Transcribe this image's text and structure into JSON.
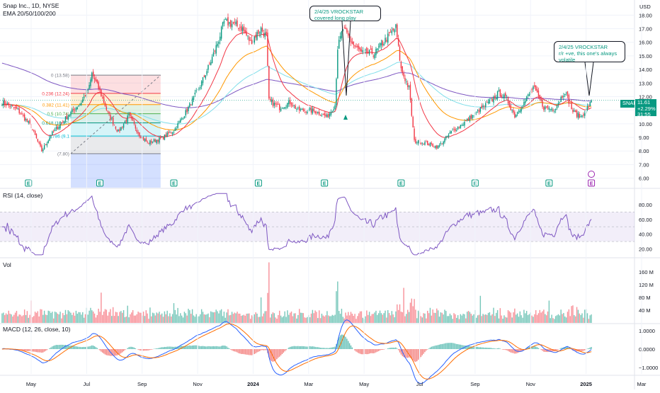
{
  "header": {
    "title": "Snap Inc., 1D, NYSE",
    "indicator": "EMA 20/50/100/200",
    "currency": "USD"
  },
  "panes": {
    "rsi_title": "RSI (14, close)",
    "vol_title": "Vol",
    "macd_title": "MACD (12, 26, close, 10)"
  },
  "annotations": [
    {
      "lines": [
        "2/4/25 VROCKSTAR",
        "covered long play"
      ]
    },
    {
      "lines": [
        "2/4/25 VROCKSTAR",
        "r/r +ve, this one's always",
        "volatile"
      ]
    }
  ],
  "price_tag": {
    "symbol": "SNAP",
    "price": "11.61",
    "change": "+2.29%",
    "time": "31:55"
  },
  "chart_data": {
    "type": "candlestick",
    "x_ticks": [
      "May",
      "Jul",
      "Sep",
      "Nov",
      "2024",
      "Mar",
      "May",
      "Jul",
      "Sep",
      "Nov",
      "2025",
      "Mar"
    ],
    "price_axis": {
      "ticks": [
        6.0,
        7.0,
        8.0,
        9.0,
        10.0,
        11.0,
        12.0,
        13.0,
        14.0,
        15.0,
        16.0,
        17.0,
        18.0
      ],
      "range": [
        5.3,
        18.8
      ]
    },
    "ohlc_anchors": [
      [
        0,
        11.6
      ],
      [
        12,
        11.0
      ],
      [
        22,
        9.8
      ],
      [
        30,
        8.0
      ],
      [
        38,
        9.3
      ],
      [
        48,
        10.4
      ],
      [
        60,
        11.6
      ],
      [
        66,
        12.7
      ],
      [
        68,
        13.7
      ],
      [
        74,
        12.4
      ],
      [
        80,
        10.8
      ],
      [
        88,
        9.4
      ],
      [
        96,
        10.6
      ],
      [
        104,
        9.2
      ],
      [
        110,
        8.6
      ],
      [
        120,
        8.9
      ],
      [
        130,
        9.5
      ],
      [
        140,
        11.0
      ],
      [
        150,
        12.8
      ],
      [
        158,
        14.6
      ],
      [
        164,
        16.2
      ],
      [
        168,
        17.5
      ],
      [
        176,
        17.3
      ],
      [
        182,
        17.0
      ],
      [
        188,
        16.0
      ],
      [
        196,
        17.0
      ],
      [
        200,
        16.4
      ],
      [
        202,
        11.7
      ],
      [
        210,
        11.2
      ],
      [
        218,
        11.6
      ],
      [
        224,
        11.0
      ],
      [
        232,
        11.0
      ],
      [
        238,
        10.9
      ],
      [
        246,
        10.5
      ],
      [
        252,
        11.4
      ],
      [
        254,
        15.6
      ],
      [
        258,
        17.0
      ],
      [
        266,
        15.8
      ],
      [
        272,
        15.2
      ],
      [
        282,
        15.2
      ],
      [
        292,
        16.4
      ],
      [
        298,
        17.1
      ],
      [
        302,
        14.0
      ],
      [
        308,
        12.6
      ],
      [
        312,
        8.7
      ],
      [
        320,
        8.6
      ],
      [
        330,
        8.3
      ],
      [
        340,
        9.4
      ],
      [
        350,
        10.1
      ],
      [
        360,
        10.9
      ],
      [
        370,
        11.7
      ],
      [
        376,
        12.3
      ],
      [
        382,
        11.8
      ],
      [
        388,
        10.6
      ],
      [
        396,
        11.7
      ],
      [
        402,
        12.7
      ],
      [
        410,
        11.2
      ],
      [
        418,
        11.1
      ],
      [
        426,
        12.4
      ],
      [
        432,
        10.9
      ],
      [
        438,
        10.5
      ],
      [
        446,
        11.6
      ]
    ],
    "fibonacci": {
      "high": 13.58,
      "low": 7.8,
      "levels": [
        {
          "ratio": "0",
          "price": "13.58",
          "label": "0 (13.58)",
          "color": "#787b86"
        },
        {
          "ratio": "0.236",
          "price": "12.24",
          "label": "0.236 (12.24)",
          "color": "#f23645"
        },
        {
          "ratio": "0.382",
          "price": "11.41",
          "label": "0.382 (11.41)",
          "color": "#ff9800"
        },
        {
          "ratio": "0.5",
          "price": "10.74",
          "label": "0.5 (10.74)",
          "color": "#4caf50"
        },
        {
          "ratio": "0.618",
          "price": "10.07",
          "label": "0.618 (10.07)",
          "color": "#089981"
        },
        {
          "ratio": "0.786",
          "price": "9.1",
          "label": "0.786 (9.1",
          "color": "#00bcd4"
        },
        {
          "ratio": "1",
          "price": "7.80",
          "label": "(7.80)",
          "color": "#787b86"
        }
      ]
    },
    "ema_colors": {
      "ema20": "#f23645",
      "ema50": "#ff9800",
      "ema100": "#80deea",
      "ema200": "#7e57c2"
    },
    "earnings_markers": [
      "E",
      "E",
      "E",
      "E",
      "E",
      "E",
      "E",
      "E",
      "E"
    ],
    "rsi_axis": {
      "ticks": [
        20.0,
        40.0,
        60.0,
        80.0
      ],
      "band": [
        30,
        70
      ]
    },
    "volume_axis": {
      "ticks": [
        "40 M",
        "80 M",
        "120 M",
        "160 M"
      ]
    },
    "macd_axis": {
      "ticks": [
        "1.0000",
        "0.0000",
        "−1.0000"
      ]
    },
    "colors": {
      "up": "#089981",
      "down": "#f23645",
      "rsi": "#7e57c2",
      "macd": "#2962ff",
      "signal": "#ff6d00"
    }
  }
}
